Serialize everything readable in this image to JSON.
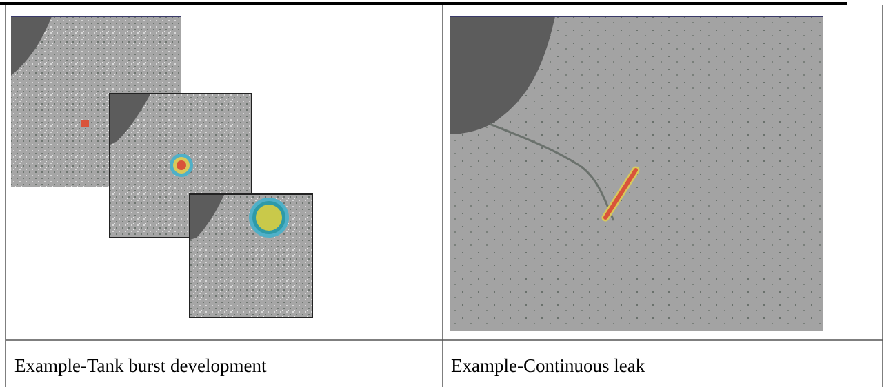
{
  "table": {
    "captions": [
      "Example-Tank burst development",
      "Example-Continuous leak"
    ]
  }
}
